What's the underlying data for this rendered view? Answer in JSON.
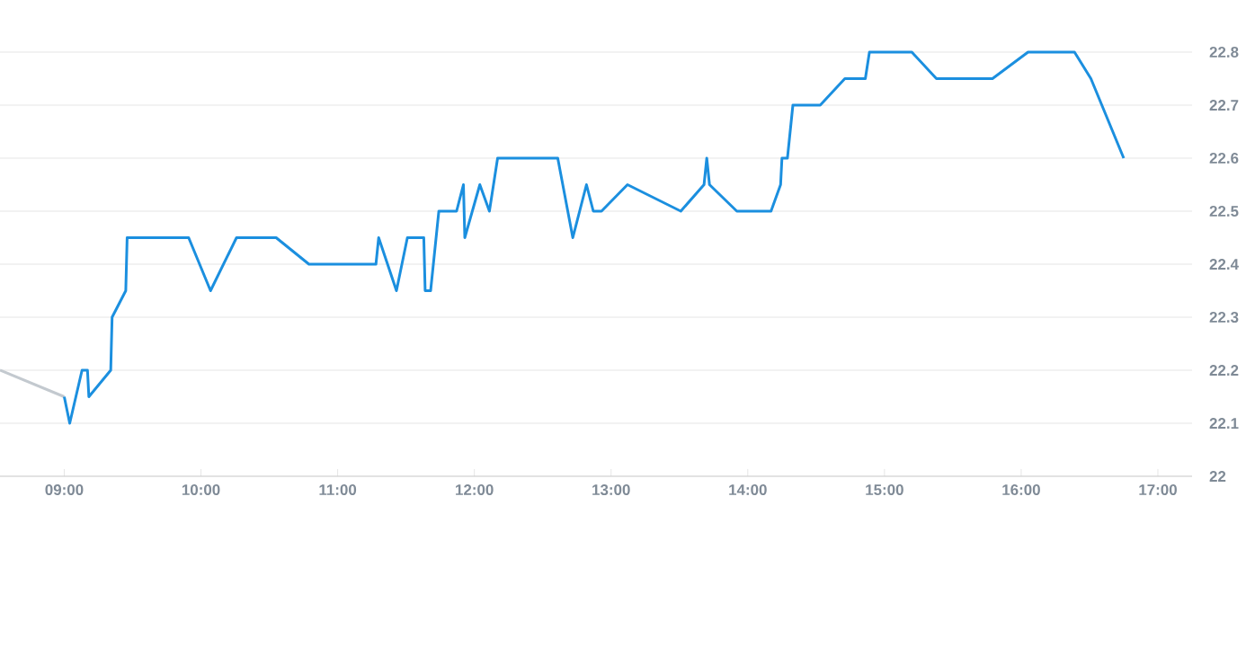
{
  "chart_data": {
    "type": "line",
    "xlim": [
      8.53,
      17.25
    ],
    "ylim": [
      22,
      22.8
    ],
    "xticks": [
      {
        "value": 9,
        "label": "09:00"
      },
      {
        "value": 10,
        "label": "10:00"
      },
      {
        "value": 11,
        "label": "11:00"
      },
      {
        "value": 12,
        "label": "12:00"
      },
      {
        "value": 13,
        "label": "13:00"
      },
      {
        "value": 14,
        "label": "14:00"
      },
      {
        "value": 15,
        "label": "15:00"
      },
      {
        "value": 16,
        "label": "16:00"
      },
      {
        "value": 17,
        "label": "17:00"
      }
    ],
    "yticks": [
      22,
      22.1,
      22.2,
      22.3,
      22.4,
      22.5,
      22.6,
      22.7,
      22.8
    ],
    "grid": "y",
    "marker": "none",
    "line_style": "solid",
    "series": [
      {
        "color": "#c3c9cf",
        "x": [
          8.53,
          9.0
        ],
        "values": [
          22.2,
          22.15
        ]
      },
      {
        "color": "#1b8fdf",
        "x": [
          9.0,
          9.04,
          9.13,
          9.17,
          9.18,
          9.34,
          9.35,
          9.45,
          9.46,
          9.91,
          10.07,
          10.26,
          10.55,
          10.79,
          11.28,
          11.3,
          11.43,
          11.51,
          11.63,
          11.64,
          11.68,
          11.74,
          11.87,
          11.92,
          11.93,
          12.04,
          12.11,
          12.17,
          12.61,
          12.72,
          12.82,
          12.87,
          12.93,
          13.12,
          13.51,
          13.68,
          13.7,
          13.72,
          13.92,
          14.17,
          14.24,
          14.25,
          14.29,
          14.33,
          14.53,
          14.71,
          14.86,
          14.89,
          15.2,
          15.38,
          15.79,
          16.05,
          16.39,
          16.51,
          16.75
        ],
        "values": [
          22.15,
          22.1,
          22.2,
          22.2,
          22.15,
          22.2,
          22.3,
          22.35,
          22.45,
          22.45,
          22.35,
          22.45,
          22.45,
          22.4,
          22.4,
          22.45,
          22.35,
          22.45,
          22.45,
          22.35,
          22.35,
          22.5,
          22.5,
          22.55,
          22.45,
          22.55,
          22.5,
          22.6,
          22.6,
          22.45,
          22.55,
          22.5,
          22.5,
          22.55,
          22.5,
          22.55,
          22.6,
          22.55,
          22.5,
          22.5,
          22.55,
          22.6,
          22.6,
          22.7,
          22.7,
          22.75,
          22.75,
          22.8,
          22.8,
          22.75,
          22.75,
          22.8,
          22.8,
          22.75,
          22.6
        ]
      }
    ]
  }
}
